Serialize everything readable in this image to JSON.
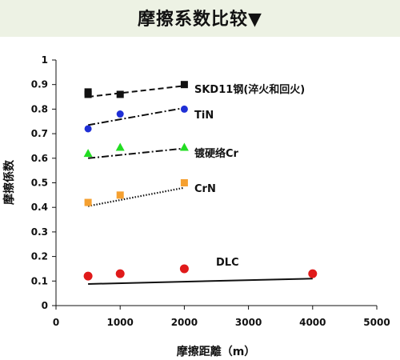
{
  "chart_data": {
    "type": "scatter",
    "title": "摩擦系数比较▼",
    "xlabel": "摩擦距離（m）",
    "ylabel": "摩擦係数",
    "xlim": [
      0,
      5000
    ],
    "ylim": [
      0,
      1
    ],
    "xticks": [
      0,
      1000,
      2000,
      3000,
      4000,
      5000
    ],
    "yticks": [
      0,
      0.1,
      0.2,
      0.3,
      0.4,
      0.5,
      0.6,
      0.7,
      0.8,
      0.9,
      1
    ],
    "grid": false,
    "series": [
      {
        "name": "SKD11钢(淬火和回火)",
        "marker": "square",
        "color": "#111111",
        "points": [
          {
            "x": 500,
            "y": 0.87
          },
          {
            "x": 500,
            "y": 0.86
          },
          {
            "x": 1000,
            "y": 0.86
          },
          {
            "x": 2000,
            "y": 0.9
          }
        ],
        "trend": {
          "style": "dashed",
          "color": "#111111",
          "from": [
            500,
            0.85
          ],
          "to": [
            2000,
            0.895
          ]
        }
      },
      {
        "name": "TiN",
        "marker": "circle",
        "color": "#1f2fd6",
        "points": [
          {
            "x": 500,
            "y": 0.72
          },
          {
            "x": 1000,
            "y": 0.78
          },
          {
            "x": 2000,
            "y": 0.8
          }
        ],
        "trend": {
          "style": "dashdot",
          "color": "#111111",
          "from": [
            500,
            0.735
          ],
          "to": [
            2000,
            0.805
          ]
        }
      },
      {
        "name": "镀硬络Cr",
        "marker": "triangle",
        "color": "#22dd22",
        "points": [
          {
            "x": 500,
            "y": 0.62
          },
          {
            "x": 1000,
            "y": 0.645
          },
          {
            "x": 2000,
            "y": 0.645
          }
        ],
        "trend": {
          "style": "dashdot",
          "color": "#111111",
          "from": [
            500,
            0.6
          ],
          "to": [
            2000,
            0.64
          ]
        }
      },
      {
        "name": "CrN",
        "marker": "square",
        "color": "#f5a030",
        "points": [
          {
            "x": 500,
            "y": 0.42
          },
          {
            "x": 1000,
            "y": 0.45
          },
          {
            "x": 2000,
            "y": 0.5
          }
        ],
        "trend": {
          "style": "dotted",
          "color": "#111111",
          "from": [
            500,
            0.405
          ],
          "to": [
            2000,
            0.48
          ]
        }
      },
      {
        "name": "DLC",
        "marker": "circle",
        "color": "#e01a1a",
        "points": [
          {
            "x": 500,
            "y": 0.12
          },
          {
            "x": 1000,
            "y": 0.13
          },
          {
            "x": 2000,
            "y": 0.15
          },
          {
            "x": 4000,
            "y": 0.13
          }
        ],
        "trend": {
          "style": "solid",
          "color": "#111111",
          "from": [
            500,
            0.088
          ],
          "to": [
            4000,
            0.11
          ]
        }
      }
    ]
  }
}
